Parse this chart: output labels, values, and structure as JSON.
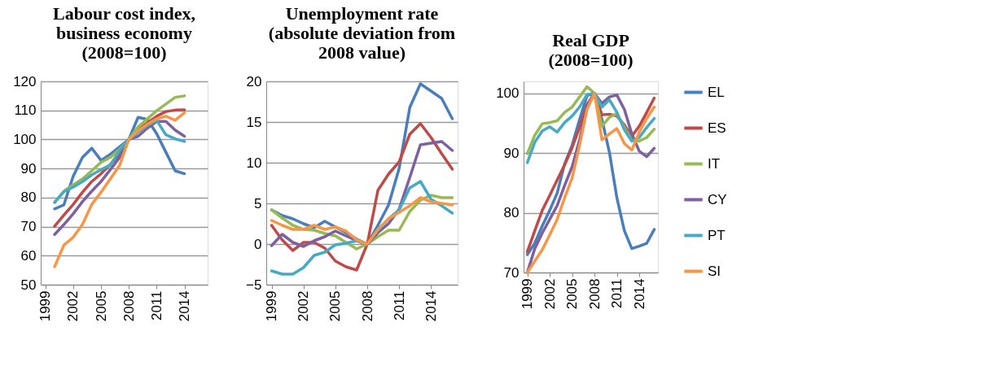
{
  "chart_data": [
    {
      "type": "line",
      "title": "Labour cost index,\nbusiness economy\n(2008=100)",
      "x": [
        2000,
        2001,
        2002,
        2003,
        2004,
        2005,
        2006,
        2007,
        2008,
        2009,
        2010,
        2011,
        2012,
        2013,
        2014
      ],
      "xlim": [
        1998.5,
        2016.5
      ],
      "xticks": [
        1999,
        2002,
        2005,
        2008,
        2011,
        2014
      ],
      "ylim": [
        50,
        120
      ],
      "yticks": [
        50,
        60,
        70,
        80,
        90,
        100,
        110,
        120
      ],
      "grid": "y",
      "legend": false,
      "series": [
        {
          "color": "#4a7ebb",
          "values": [
            76.1,
            77.5,
            87.3,
            93.8,
            97.0,
            92.8,
            94.9,
            97.4,
            100,
            107.6,
            106.9,
            102.0,
            95.6,
            89.2,
            88.2
          ]
        },
        {
          "color": "#be4b48",
          "values": [
            70.1,
            74.0,
            77.6,
            81.8,
            85.5,
            88.2,
            91.4,
            94.9,
            100,
            103.4,
            105.7,
            108.0,
            109.6,
            110.1,
            110.2
          ]
        },
        {
          "color": "#98b954",
          "values": [
            78.4,
            82.2,
            84.4,
            86.4,
            89.2,
            92.1,
            93.8,
            96.6,
            100,
            104.3,
            107.1,
            109.9,
            112.2,
            114.5,
            115.0
          ]
        },
        {
          "color": "#7d60a0",
          "values": [
            67.3,
            70.7,
            74.4,
            78.6,
            82.2,
            85.5,
            89.6,
            93.8,
            100,
            101.1,
            103.9,
            106.2,
            106.2,
            103.2,
            101.1
          ]
        },
        {
          "color": "#46aac5",
          "values": [
            78.3,
            82.0,
            83.6,
            85.5,
            87.8,
            89.6,
            91.2,
            96.1,
            100,
            102.5,
            104.8,
            106.6,
            101.6,
            100.2,
            99.3
          ]
        },
        {
          "color": "#f79646",
          "values": [
            56.2,
            63.6,
            66.3,
            70.7,
            77.6,
            81.8,
            86.4,
            91.0,
            100,
            103.0,
            105.2,
            107.1,
            108.0,
            106.6,
            109.2
          ]
        }
      ]
    },
    {
      "type": "line",
      "title": "Unemployment rate\n(absolute deviation from\n2008 value)",
      "x": [
        1999,
        2000,
        2001,
        2002,
        2003,
        2004,
        2005,
        2006,
        2007,
        2008,
        2009,
        2010,
        2011,
        2012,
        2013,
        2014,
        2015,
        2016
      ],
      "xlim": [
        1998.5,
        2016.5
      ],
      "xticks": [
        1999,
        2002,
        2005,
        2008,
        2011,
        2014
      ],
      "ylim": [
        -5,
        20
      ],
      "yticks": [
        -5,
        0,
        5,
        10,
        15,
        20
      ],
      "grid": "y",
      "legend": false,
      "series": [
        {
          "color": "#4a7ebb",
          "values": [
            4.2,
            3.5,
            3.1,
            2.5,
            2.0,
            2.8,
            2.1,
            1.4,
            0.6,
            0,
            2.3,
            4.8,
            9.3,
            16.8,
            19.7,
            18.8,
            17.9,
            15.4
          ]
        },
        {
          "color": "#be4b48",
          "values": [
            2.3,
            0.5,
            -0.8,
            0.2,
            0.2,
            -0.5,
            -2.1,
            -2.8,
            -3.2,
            0,
            6.6,
            8.6,
            10.1,
            13.5,
            14.8,
            13.1,
            11.1,
            9.2
          ]
        },
        {
          "color": "#98b954",
          "values": [
            4.2,
            3.2,
            2.3,
            1.8,
            1.7,
            1.3,
            1.0,
            0.2,
            -0.6,
            0,
            0.9,
            1.7,
            1.7,
            4.0,
            5.4,
            6.0,
            5.7,
            5.7
          ]
        },
        {
          "color": "#7d60a0",
          "values": [
            -0.2,
            1.2,
            0.2,
            -0.3,
            0.4,
            0.9,
            1.6,
            1.0,
            0.4,
            0,
            1.4,
            2.5,
            4.3,
            8.2,
            12.2,
            12.4,
            12.6,
            11.5
          ]
        },
        {
          "color": "#46aac5",
          "values": [
            -3.3,
            -3.7,
            -3.7,
            -2.9,
            -1.4,
            -1.0,
            -0.1,
            0.1,
            0.4,
            0,
            1.7,
            3.1,
            4.2,
            6.9,
            7.7,
            5.5,
            4.7,
            3.8
          ]
        },
        {
          "color": "#f79646",
          "values": [
            2.9,
            2.3,
            1.8,
            1.8,
            2.3,
            1.8,
            2.1,
            1.6,
            0.5,
            0,
            1.8,
            3.1,
            3.9,
            4.7,
            5.7,
            5.2,
            5.0,
            4.8
          ]
        }
      ]
    },
    {
      "type": "line",
      "title": "Real GDP\n(2008=100)",
      "x": [
        1999,
        2000,
        2001,
        2002,
        2003,
        2004,
        2005,
        2006,
        2007,
        2008,
        2009,
        2010,
        2011,
        2012,
        2013,
        2014,
        2015,
        2016
      ],
      "xlim": [
        1998.5,
        2016.5
      ],
      "xticks": [
        1999,
        2002,
        2005,
        2008,
        2011,
        2014
      ],
      "ylim": [
        70,
        102
      ],
      "yticks": [
        70,
        80,
        90,
        100
      ],
      "grid": "y",
      "legend": "right",
      "series": [
        {
          "name": "EL",
          "color": "#4a7ebb",
          "values": [
            73.0,
            74.9,
            77.8,
            80.4,
            83.3,
            88.2,
            91.3,
            95.6,
            99.6,
            100,
            95.6,
            90.1,
            82.5,
            77.0,
            74.0,
            74.4,
            74.9,
            77.2
          ]
        },
        {
          "name": "ES",
          "color": "#be4b48",
          "values": [
            73.5,
            77.0,
            80.4,
            82.9,
            85.5,
            88.0,
            90.9,
            94.3,
            98.1,
            100,
            96.4,
            96.5,
            96.2,
            94.7,
            92.8,
            94.5,
            96.8,
            99.2
          ]
        },
        {
          "name": "IT",
          "color": "#98b954",
          "values": [
            89.9,
            93.0,
            94.9,
            95.1,
            95.4,
            96.8,
            97.7,
            99.4,
            101.1,
            100,
            94.5,
            96.0,
            96.6,
            94.3,
            92.2,
            92.0,
            92.6,
            94.0
          ]
        },
        {
          "name": "CY",
          "color": "#7d60a0",
          "values": [
            70.0,
            74.0,
            76.6,
            78.9,
            81.2,
            84.6,
            87.7,
            92.2,
            97.7,
            100,
            98.3,
            99.4,
            99.7,
            97.3,
            93.2,
            90.3,
            89.4,
            90.8
          ]
        },
        {
          "name": "PT",
          "color": "#46aac5",
          "values": [
            88.4,
            91.8,
            93.7,
            94.4,
            93.5,
            95.1,
            96.2,
            97.7,
            99.8,
            100,
            97.7,
            98.9,
            96.8,
            93.9,
            92.0,
            92.6,
            94.3,
            95.8
          ]
        },
        {
          "name": "SI",
          "color": "#f79646",
          "values": [
            70.0,
            71.9,
            73.8,
            76.3,
            78.9,
            82.5,
            85.8,
            91.3,
            97.3,
            100,
            92.2,
            93.2,
            94.1,
            91.6,
            90.5,
            93.5,
            95.8,
            97.7
          ]
        }
      ]
    }
  ]
}
